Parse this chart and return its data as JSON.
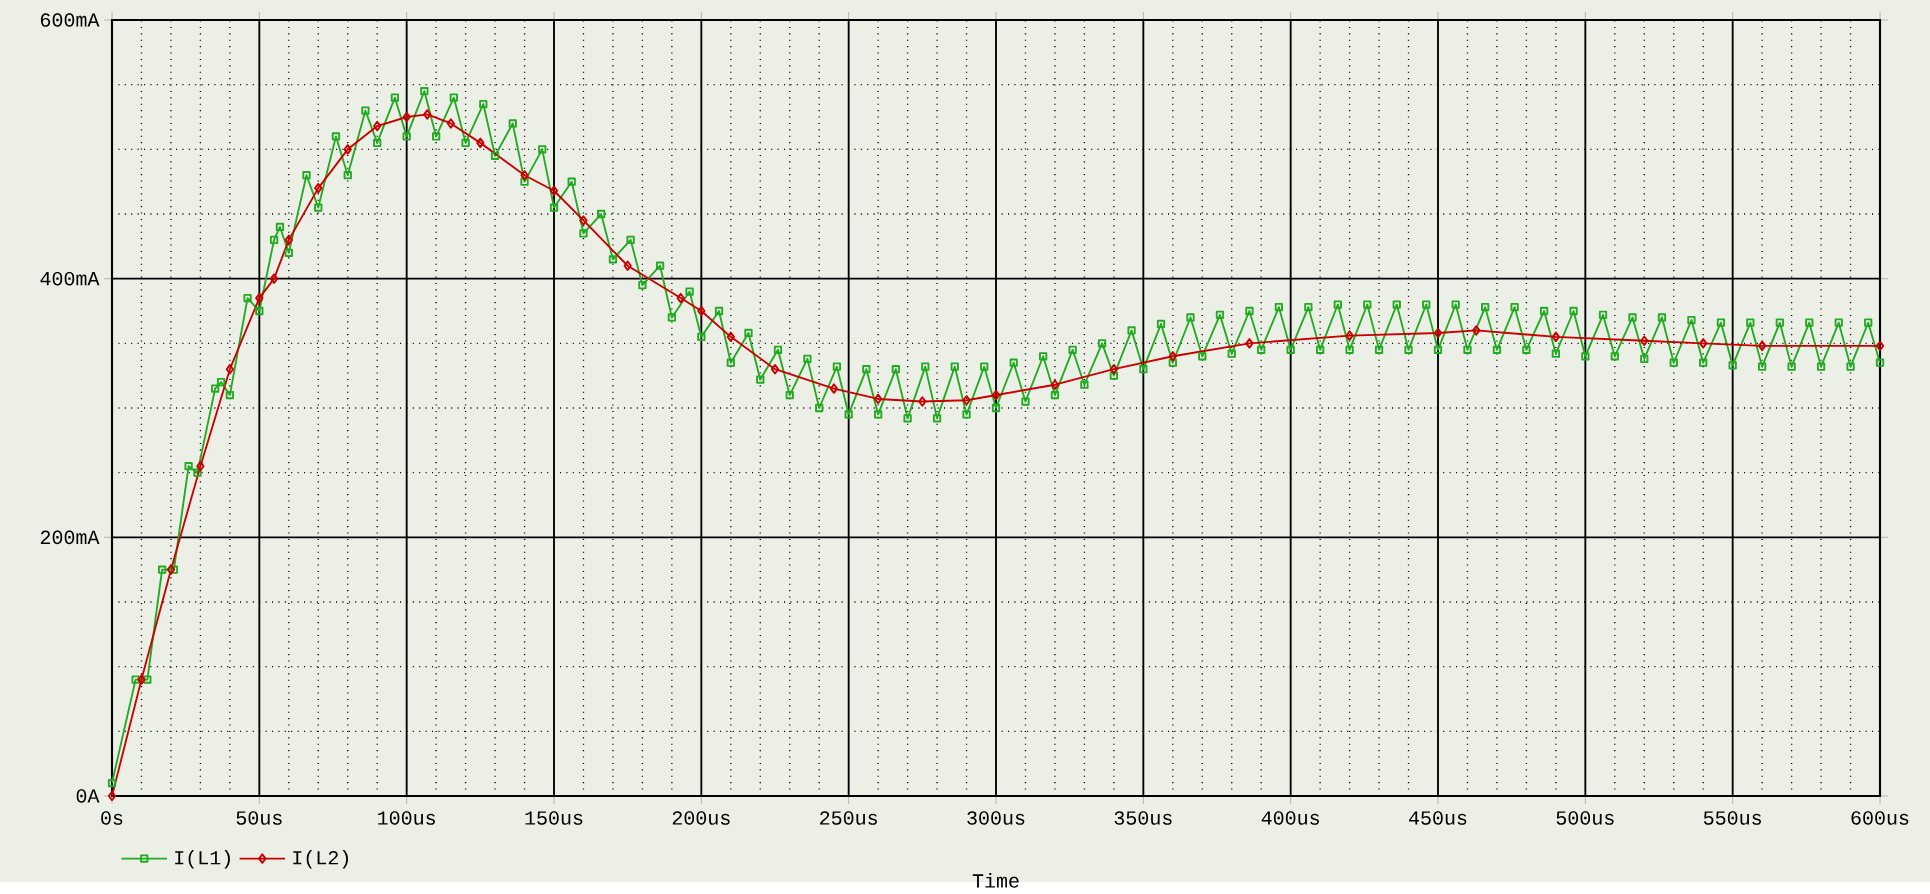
{
  "chart_data": {
    "type": "line",
    "xlabel": "Time",
    "grid": true,
    "legend": "bottom left",
    "line_style": "solid",
    "xlim": [
      0,
      600
    ],
    "ylim": [
      0,
      600
    ],
    "xticks": [
      {
        "value": 0,
        "label": "0s"
      },
      {
        "value": 50,
        "label": "50us"
      },
      {
        "value": 100,
        "label": "100us"
      },
      {
        "value": 150,
        "label": "150us"
      },
      {
        "value": 200,
        "label": "200us"
      },
      {
        "value": 250,
        "label": "250us"
      },
      {
        "value": 300,
        "label": "300us"
      },
      {
        "value": 350,
        "label": "350us"
      },
      {
        "value": 400,
        "label": "400us"
      },
      {
        "value": 450,
        "label": "450us"
      },
      {
        "value": 500,
        "label": "500us"
      },
      {
        "value": 550,
        "label": "550us"
      },
      {
        "value": 600,
        "label": "600us"
      }
    ],
    "yticks": [
      {
        "value": 0,
        "label": "0A"
      },
      {
        "value": 200,
        "label": "200mA"
      },
      {
        "value": 400,
        "label": "400mA"
      },
      {
        "value": 600,
        "label": "600mA"
      }
    ],
    "series": [
      {
        "name": "I(L1)",
        "color": "#22aa22",
        "marker": "square",
        "x": [
          0,
          8,
          12,
          17,
          21,
          26,
          29,
          35,
          37,
          40,
          46,
          50,
          55,
          57,
          60,
          66,
          70,
          76,
          80,
          86,
          90,
          96,
          100,
          106,
          110,
          116,
          120,
          126,
          130,
          136,
          140,
          146,
          150,
          156,
          160,
          166,
          170,
          176,
          180,
          186,
          190,
          196,
          200,
          206,
          210,
          216,
          220,
          226,
          230,
          236,
          240,
          246,
          250,
          256,
          260,
          266,
          270,
          276,
          280,
          286,
          290,
          296,
          300,
          306,
          310,
          316,
          320,
          326,
          330,
          336,
          340,
          346,
          350,
          356,
          360,
          366,
          370,
          376,
          380,
          386,
          390,
          396,
          400,
          406,
          410,
          416,
          420,
          426,
          430,
          436,
          440,
          446,
          450,
          456,
          460,
          466,
          470,
          476,
          480,
          486,
          490,
          496,
          500,
          506,
          510,
          516,
          520,
          526,
          530,
          536,
          540,
          546,
          550,
          556,
          560,
          566,
          570,
          576,
          580,
          586,
          590,
          596,
          600
        ],
        "values": [
          10,
          90,
          90,
          175,
          175,
          255,
          250,
          315,
          320,
          310,
          385,
          375,
          430,
          440,
          420,
          480,
          455,
          510,
          480,
          530,
          505,
          540,
          510,
          545,
          510,
          540,
          505,
          535,
          495,
          520,
          475,
          500,
          455,
          475,
          435,
          450,
          415,
          430,
          395,
          410,
          370,
          390,
          355,
          375,
          335,
          358,
          322,
          345,
          310,
          338,
          300,
          332,
          295,
          330,
          295,
          330,
          292,
          332,
          292,
          332,
          295,
          332,
          300,
          335,
          305,
          340,
          310,
          345,
          318,
          350,
          325,
          360,
          330,
          365,
          335,
          370,
          340,
          372,
          342,
          375,
          345,
          378,
          345,
          378,
          345,
          380,
          345,
          380,
          345,
          380,
          345,
          380,
          345,
          380,
          345,
          378,
          345,
          378,
          345,
          375,
          342,
          375,
          340,
          372,
          340,
          370,
          338,
          370,
          335,
          368,
          335,
          366,
          333,
          366,
          332,
          366,
          332,
          366,
          332,
          366,
          332,
          366,
          335
        ]
      },
      {
        "name": "I(L2)",
        "color": "#cc0000",
        "marker": "diamond",
        "x": [
          0,
          10,
          20,
          30,
          40,
          50,
          55,
          60,
          70,
          80,
          90,
          100,
          107,
          115,
          125,
          140,
          150,
          160,
          175,
          193,
          200,
          210,
          225,
          245,
          260,
          275,
          290,
          300,
          320,
          340,
          360,
          386,
          420,
          450,
          463,
          490,
          520,
          540,
          560,
          600
        ],
        "values": [
          0,
          90,
          175,
          255,
          330,
          385,
          400,
          430,
          470,
          500,
          518,
          525,
          527,
          520,
          505,
          480,
          468,
          445,
          410,
          385,
          375,
          355,
          330,
          315,
          307,
          305,
          306,
          310,
          318,
          330,
          340,
          350,
          356,
          358,
          360,
          355,
          352,
          350,
          348,
          348
        ]
      }
    ]
  }
}
